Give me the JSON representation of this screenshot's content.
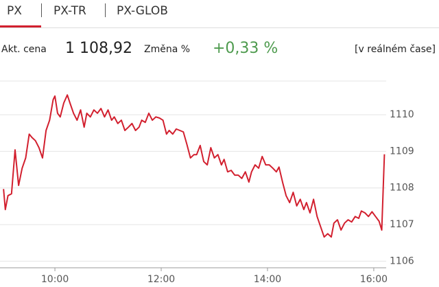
{
  "tabs": [
    "PX",
    "PX-TR",
    "PX-GLOB"
  ],
  "quote": {
    "price_label": "Akt. cena",
    "price": "1 108,92",
    "change_label": "Změna %",
    "change": "+0,33 %",
    "realtime": "[v reálném čase]"
  },
  "chart_data": {
    "type": "line",
    "series": [
      {
        "color": "#d21f2e",
        "x": [
          542,
          544,
          547,
          551,
          555,
          559,
          563,
          567,
          571,
          574,
          578,
          582,
          586,
          590,
          594,
          598,
          600,
          603,
          606,
          610,
          614,
          617,
          621,
          625,
          629,
          633,
          636,
          640,
          644,
          648,
          652,
          656,
          660,
          664,
          667,
          671,
          675,
          679,
          683,
          687,
          691,
          695,
          698,
          702,
          706,
          710,
          714,
          718,
          722,
          726,
          729,
          733,
          737,
          741,
          745,
          749,
          753,
          757,
          760,
          764,
          768,
          772,
          776,
          780,
          784,
          788,
          791,
          795,
          799,
          803,
          807,
          811,
          815,
          819,
          822,
          826,
          830,
          834,
          838,
          842,
          846,
          850,
          853,
          857,
          861,
          865,
          869,
          873,
          877,
          881,
          884,
          888,
          892,
          896,
          900,
          904,
          908,
          912,
          915,
          919,
          923,
          927,
          931,
          935,
          939,
          943,
          946,
          950,
          954,
          958,
          962,
          966,
          969,
          972
        ],
        "values": [
          1107.97,
          1107.41,
          1107.79,
          1107.84,
          1109.04,
          1108.07,
          1108.54,
          1108.82,
          1109.47,
          1109.38,
          1109.29,
          1109.1,
          1108.82,
          1109.57,
          1109.85,
          1110.41,
          1110.51,
          1110.04,
          1109.94,
          1110.32,
          1110.54,
          1110.32,
          1110.04,
          1109.85,
          1110.13,
          1109.66,
          1110.04,
          1109.94,
          1110.13,
          1110.04,
          1110.17,
          1109.94,
          1110.13,
          1109.85,
          1109.94,
          1109.76,
          1109.85,
          1109.57,
          1109.66,
          1109.76,
          1109.57,
          1109.66,
          1109.85,
          1109.79,
          1110.04,
          1109.85,
          1109.94,
          1109.91,
          1109.85,
          1109.47,
          1109.57,
          1109.47,
          1109.61,
          1109.57,
          1109.53,
          1109.19,
          1108.82,
          1108.91,
          1108.91,
          1109.16,
          1108.72,
          1108.63,
          1109.1,
          1108.82,
          1108.91,
          1108.63,
          1108.78,
          1108.44,
          1108.48,
          1108.35,
          1108.35,
          1108.26,
          1108.44,
          1108.16,
          1108.44,
          1108.63,
          1108.54,
          1108.86,
          1108.63,
          1108.63,
          1108.54,
          1108.44,
          1108.57,
          1108.16,
          1107.79,
          1107.6,
          1107.88,
          1107.51,
          1107.69,
          1107.41,
          1107.6,
          1107.32,
          1107.69,
          1107.22,
          1106.94,
          1106.66,
          1106.75,
          1106.66,
          1107.04,
          1107.13,
          1106.85,
          1107.04,
          1107.13,
          1107.07,
          1107.22,
          1107.17,
          1107.37,
          1107.32,
          1107.22,
          1107.35,
          1107.22,
          1107.09,
          1106.85,
          1108.92
        ]
      }
    ],
    "xlim": [
      538,
      974
    ],
    "xticks": [
      {
        "value": 600,
        "label": "10:00"
      },
      {
        "value": 720,
        "label": "12:00"
      },
      {
        "value": 840,
        "label": "14:00"
      },
      {
        "value": 960,
        "label": "16:00"
      }
    ],
    "ylim": [
      1105.82,
      1110.92
    ],
    "yticks": [
      1106,
      1107,
      1108,
      1109,
      1110
    ],
    "grid": true
  }
}
